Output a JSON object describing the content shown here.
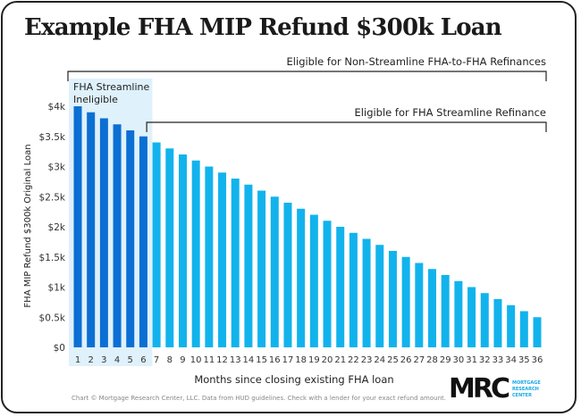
{
  "chart_data": {
    "type": "bar",
    "title": "Example FHA MIP Refund $300k Loan",
    "xlabel": "Months since closing existing FHA loan",
    "ylabel": "FHA MIP Refund $300k Original Loan",
    "ylim": [
      0,
      4000
    ],
    "yticks": [
      0,
      500,
      1000,
      1500,
      2000,
      2500,
      3000,
      3500,
      4000
    ],
    "ytick_labels": [
      "$0",
      "$0.5k",
      "$1k",
      "$1.5k",
      "$2k",
      "$2.5k",
      "$3k",
      "$3.5k",
      "$4k"
    ],
    "categories": [
      "1",
      "2",
      "3",
      "4",
      "5",
      "6",
      "7",
      "8",
      "9",
      "10",
      "11",
      "12",
      "13",
      "14",
      "15",
      "16",
      "17",
      "18",
      "19",
      "20",
      "21",
      "22",
      "23",
      "24",
      "25",
      "26",
      "27",
      "28",
      "29",
      "30",
      "31",
      "32",
      "33",
      "34",
      "35",
      "36"
    ],
    "values": [
      4000,
      3900,
      3800,
      3700,
      3600,
      3500,
      3400,
      3300,
      3200,
      3100,
      3000,
      2900,
      2800,
      2700,
      2600,
      2500,
      2400,
      2300,
      2200,
      2100,
      2000,
      1900,
      1800,
      1700,
      1600,
      1500,
      1400,
      1300,
      1200,
      1100,
      1000,
      900,
      800,
      700,
      600,
      500
    ],
    "grid": false,
    "colors": {
      "ineligible": "#0b6fd3",
      "eligible": "#12b3ec",
      "shade": "#dff1fb"
    },
    "annotations": {
      "shade_label": "FHA Streamline Ineligible",
      "shade_label_lines": [
        "FHA Streamline",
        "Ineligible"
      ],
      "shade_months": [
        1,
        6
      ],
      "bracket_non_streamline": {
        "label": "Eligible for Non-Streamline FHA-to-FHA Refinances",
        "months": [
          1,
          36
        ]
      },
      "bracket_streamline": {
        "label": "Eligible for FHA Streamline Refinance",
        "months": [
          7,
          36
        ]
      }
    }
  },
  "footer": "Chart © Mortgage Research Center, LLC. Data from HUD guidelines. Check with a lender for your exact refund amount.",
  "logo": {
    "mark": "MRC",
    "lines": [
      "MORTGAGE",
      "RESEARCH",
      "CENTER"
    ]
  }
}
